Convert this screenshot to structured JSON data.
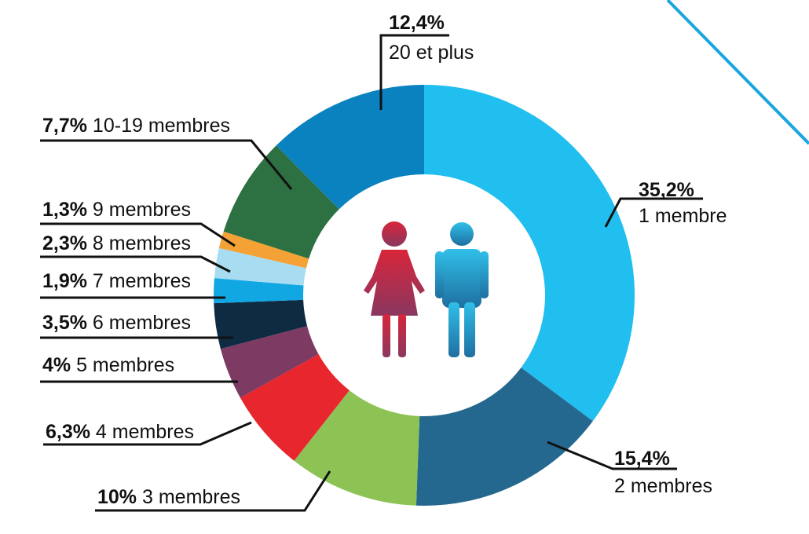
{
  "chart_data": {
    "type": "pie",
    "donut": true,
    "legend": "none",
    "slices": [
      {
        "pct_label": "35,2%",
        "name": "1 membre",
        "value": 35.2,
        "color": "#21bff0"
      },
      {
        "pct_label": "15,4%",
        "name": "2 membres",
        "value": 15.4,
        "color": "#24688f"
      },
      {
        "pct_label": "10%",
        "name": "3 membres",
        "value": 10.0,
        "color": "#8dc255"
      },
      {
        "pct_label": "6,3%",
        "name": "4 membres",
        "value": 6.3,
        "color": "#e8262e"
      },
      {
        "pct_label": "4%",
        "name": "5 membres",
        "value": 4.0,
        "color": "#7d3a63"
      },
      {
        "pct_label": "3,5%",
        "name": "6 membres",
        "value": 3.5,
        "color": "#0e2b42"
      },
      {
        "pct_label": "1,9%",
        "name": "7 membres",
        "value": 1.9,
        "color": "#11a7e3"
      },
      {
        "pct_label": "2,3%",
        "name": "8 membres",
        "value": 2.3,
        "color": "#a7dcf1"
      },
      {
        "pct_label": "1,3%",
        "name": "9 membres",
        "value": 1.3,
        "color": "#f4a236"
      },
      {
        "pct_label": "7,7%",
        "name": "10-19 membres",
        "value": 7.7,
        "color": "#2d7041"
      },
      {
        "pct_label": "12,4%",
        "name": "20 et plus",
        "value": 12.4,
        "color": "#0b82c0"
      }
    ]
  },
  "center_icons": {
    "woman_icon": "woman-figure-icon",
    "man_icon": "man-figure-icon",
    "woman_color": "#cc2a3c",
    "man_color": "#2ba6d6"
  },
  "decoration": {
    "accent_line_color": "#19a6df"
  }
}
